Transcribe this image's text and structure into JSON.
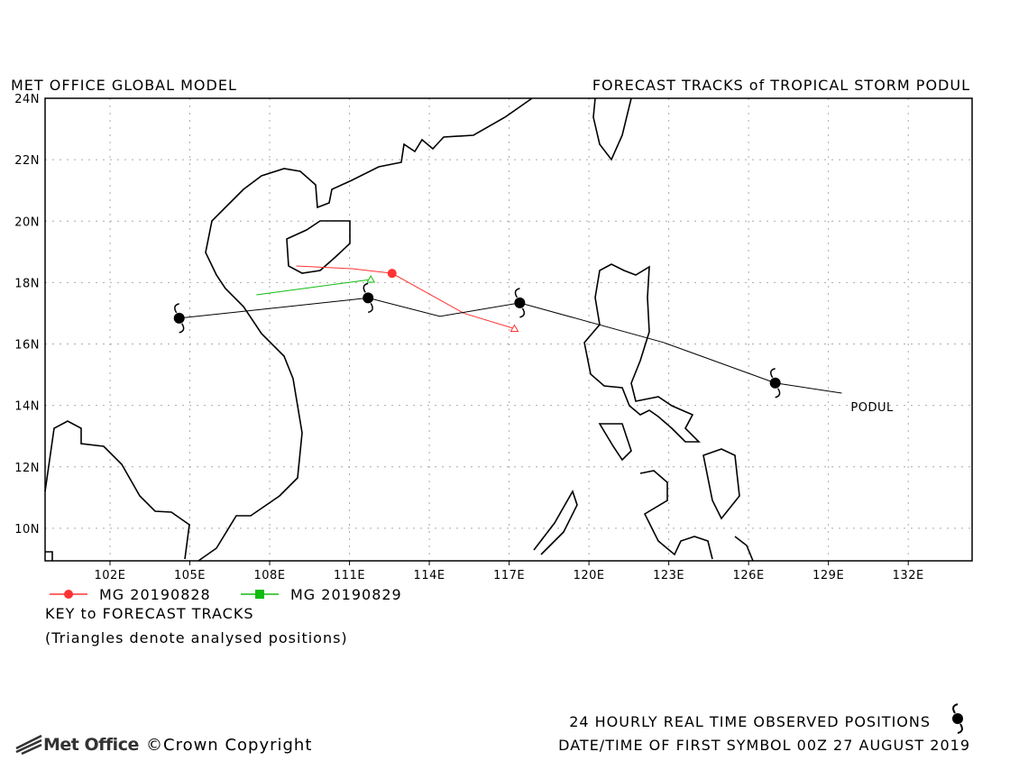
{
  "map": {
    "title_left": "MET OFFICE GLOBAL MODEL",
    "title_right": "FORECAST TRACKS of TROPICAL STORM PODUL",
    "xlim": [
      99.56,
      134.4
    ],
    "ylim": [
      8.94,
      24
    ],
    "xticks": [
      {
        "value": 102,
        "label": "102E"
      },
      {
        "value": 105,
        "label": "105E"
      },
      {
        "value": 108,
        "label": "108E"
      },
      {
        "value": 111,
        "label": "111E"
      },
      {
        "value": 114,
        "label": "114E"
      },
      {
        "value": 117,
        "label": "117E"
      },
      {
        "value": 120,
        "label": "120E"
      },
      {
        "value": 123,
        "label": "123E"
      },
      {
        "value": 126,
        "label": "126E"
      },
      {
        "value": 129,
        "label": "129E"
      },
      {
        "value": 132,
        "label": "132E"
      }
    ],
    "yticks": [
      {
        "value": 10,
        "label": "10N"
      },
      {
        "value": 12,
        "label": "12N"
      },
      {
        "value": 14,
        "label": "14N"
      },
      {
        "value": 16,
        "label": "16N"
      },
      {
        "value": 18,
        "label": "18N"
      },
      {
        "value": 20,
        "label": "20N"
      },
      {
        "value": 22,
        "label": "22N"
      },
      {
        "value": 24,
        "label": "24N"
      }
    ],
    "grid": true,
    "observed": {
      "name": "PODUL",
      "color": "#000000",
      "lon": [
        104.6,
        111.7,
        114.4,
        117.4,
        122.8,
        127.0,
        129.5
      ],
      "lat": [
        16.84,
        17.5,
        16.9,
        17.34,
        16.05,
        14.73,
        14.4
      ],
      "symbol_lon": [
        104.6,
        111.7,
        117.4,
        127.0
      ],
      "symbol_lat": [
        16.84,
        17.5,
        17.34,
        14.73
      ]
    },
    "tracks": [
      {
        "name": "MG 20190828",
        "color": "#ff3333",
        "lon": [
          109.0,
          111.1,
          112.6,
          115.3,
          117.2
        ],
        "lat": [
          18.54,
          18.45,
          18.3,
          17.0,
          16.5
        ],
        "marker_lon": [
          112.6
        ],
        "marker_lat": [
          18.3
        ],
        "analysed_lon": [
          117.2
        ],
        "analysed_lat": [
          16.5
        ]
      },
      {
        "name": "MG 20190829",
        "color": "#11bb11",
        "lon": [
          107.5,
          111.8
        ],
        "lat": [
          17.6,
          18.1
        ],
        "marker_lon": [],
        "marker_lat": [],
        "analysed_lon": [
          111.8
        ],
        "analysed_lat": [
          18.1
        ]
      }
    ],
    "key_title": "KEY to FORECAST TRACKS",
    "key_note": "(Triangles denote analysed positions)",
    "observed_note": "24 HOURLY REAL TIME OBSERVED POSITIONS",
    "first_symbol": "DATE/TIME OF FIRST SYMBOL 00Z 27 AUGUST 2019",
    "logo": "Met Office",
    "copyright": "©Crown Copyright"
  }
}
